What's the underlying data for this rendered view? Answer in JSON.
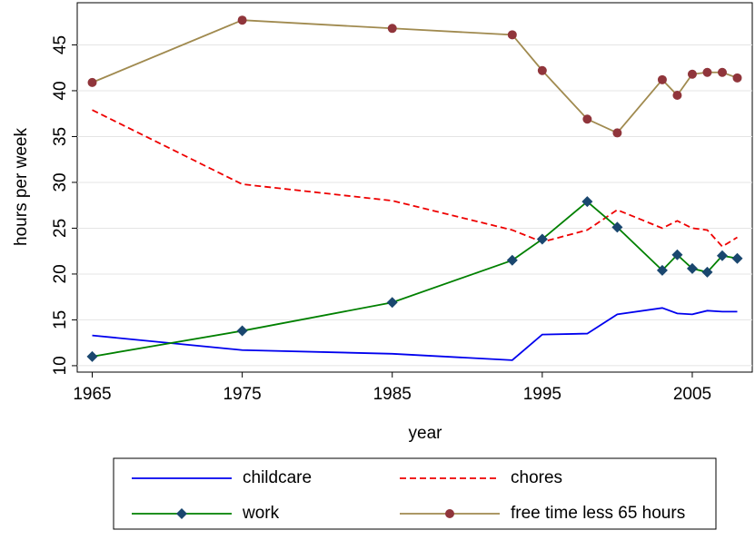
{
  "chart_data": {
    "type": "line",
    "x": [
      1965,
      1975,
      1985,
      1993,
      1995,
      1998,
      2000,
      2003,
      2004,
      2005,
      2006,
      2007,
      2008
    ],
    "series": [
      {
        "name": "childcare",
        "color": "#0000ee",
        "dash": "solid",
        "marker": "none",
        "values": [
          13.3,
          11.7,
          11.3,
          10.6,
          13.4,
          13.5,
          15.6,
          16.3,
          15.7,
          15.6,
          16.0,
          15.9,
          15.9
        ]
      },
      {
        "name": "chores",
        "color": "#ee0000",
        "dash": "dashed",
        "marker": "none",
        "values": [
          37.9,
          29.8,
          28.0,
          24.8,
          23.5,
          24.8,
          27.0,
          25.0,
          25.8,
          25.0,
          24.8,
          23.0,
          24.0
        ]
      },
      {
        "name": "work",
        "color": "#008000",
        "dash": "solid",
        "marker": "diamond",
        "marker_color": "#1a476f",
        "values": [
          11.0,
          13.8,
          16.9,
          21.5,
          23.8,
          27.9,
          25.1,
          20.4,
          22.1,
          20.6,
          20.2,
          22.0,
          21.7
        ]
      },
      {
        "name": "free time less 65 hours",
        "color": "#a08a4f",
        "dash": "solid",
        "marker": "circle",
        "marker_color": "#90353b",
        "values": [
          40.9,
          47.7,
          46.8,
          46.1,
          42.2,
          36.9,
          35.4,
          41.2,
          39.5,
          41.8,
          42.0,
          42.0,
          41.4
        ]
      }
    ],
    "x_label": "year",
    "y_label": "hours per week",
    "xlim": [
      1964,
      2009
    ],
    "xticks": [
      1965,
      1975,
      1985,
      1995,
      2005
    ],
    "ylim": [
      9.3,
      49.6
    ],
    "yticks": [
      10,
      15,
      20,
      25,
      30,
      35,
      40,
      45
    ],
    "grid": true,
    "legend": "bottom"
  }
}
